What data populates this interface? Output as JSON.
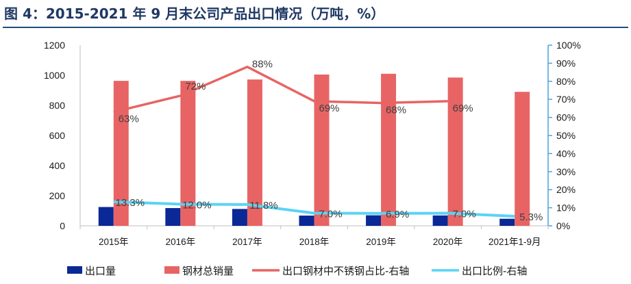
{
  "title": "图 4：2015-2021 年 9 月末公司产品出口情况（万吨，%）",
  "colors": {
    "title": "#1f3864",
    "rule": "#1f4e79",
    "export_volume": "#0a2896",
    "total_sales": "#e86464",
    "stainless_share": "#e86464",
    "export_ratio": "#5bd3f5",
    "axis": "#1a1a1a",
    "right_axis": "#4aa3d8"
  },
  "chart_data": {
    "type": "bar",
    "categories": [
      "2015年",
      "2016年",
      "2017年",
      "2018年",
      "2019年",
      "2020年",
      "2021年1-9月"
    ],
    "y_left": {
      "min": 0,
      "max": 1200,
      "ticks": [
        "0",
        "200",
        "400",
        "600",
        "800",
        "1000",
        "1200"
      ]
    },
    "y_right": {
      "min": 0,
      "max": 100,
      "ticks": [
        "0%",
        "10%",
        "20%",
        "30%",
        "40%",
        "50%",
        "60%",
        "70%",
        "80%",
        "90%",
        "100%"
      ]
    },
    "grid": false,
    "legend_position": "bottom",
    "series": [
      {
        "name": "出口量",
        "type": "bar",
        "axis": "left",
        "values": [
          125,
          118,
          112,
          68,
          70,
          69,
          47
        ]
      },
      {
        "name": "钢材总销量",
        "type": "bar",
        "axis": "left",
        "values": [
          963,
          963,
          972,
          1005,
          1010,
          985,
          890
        ]
      },
      {
        "name": "出口钢材中不锈钢占比-右轴",
        "type": "line",
        "axis": "right",
        "values": [
          63,
          72,
          88,
          69,
          68,
          69,
          null
        ],
        "labels": [
          "63%",
          "72%",
          "88%",
          "69%",
          "68%",
          "69%",
          ""
        ]
      },
      {
        "name": "出口比例-右轴",
        "type": "line",
        "axis": "right",
        "values": [
          13.3,
          12.0,
          11.8,
          7.0,
          6.9,
          7.0,
          5.3
        ],
        "labels": [
          "13.3%",
          "12.0%",
          "11.8%",
          "7.0%",
          "6.9%",
          "7.0%",
          "5.3%"
        ]
      }
    ]
  }
}
